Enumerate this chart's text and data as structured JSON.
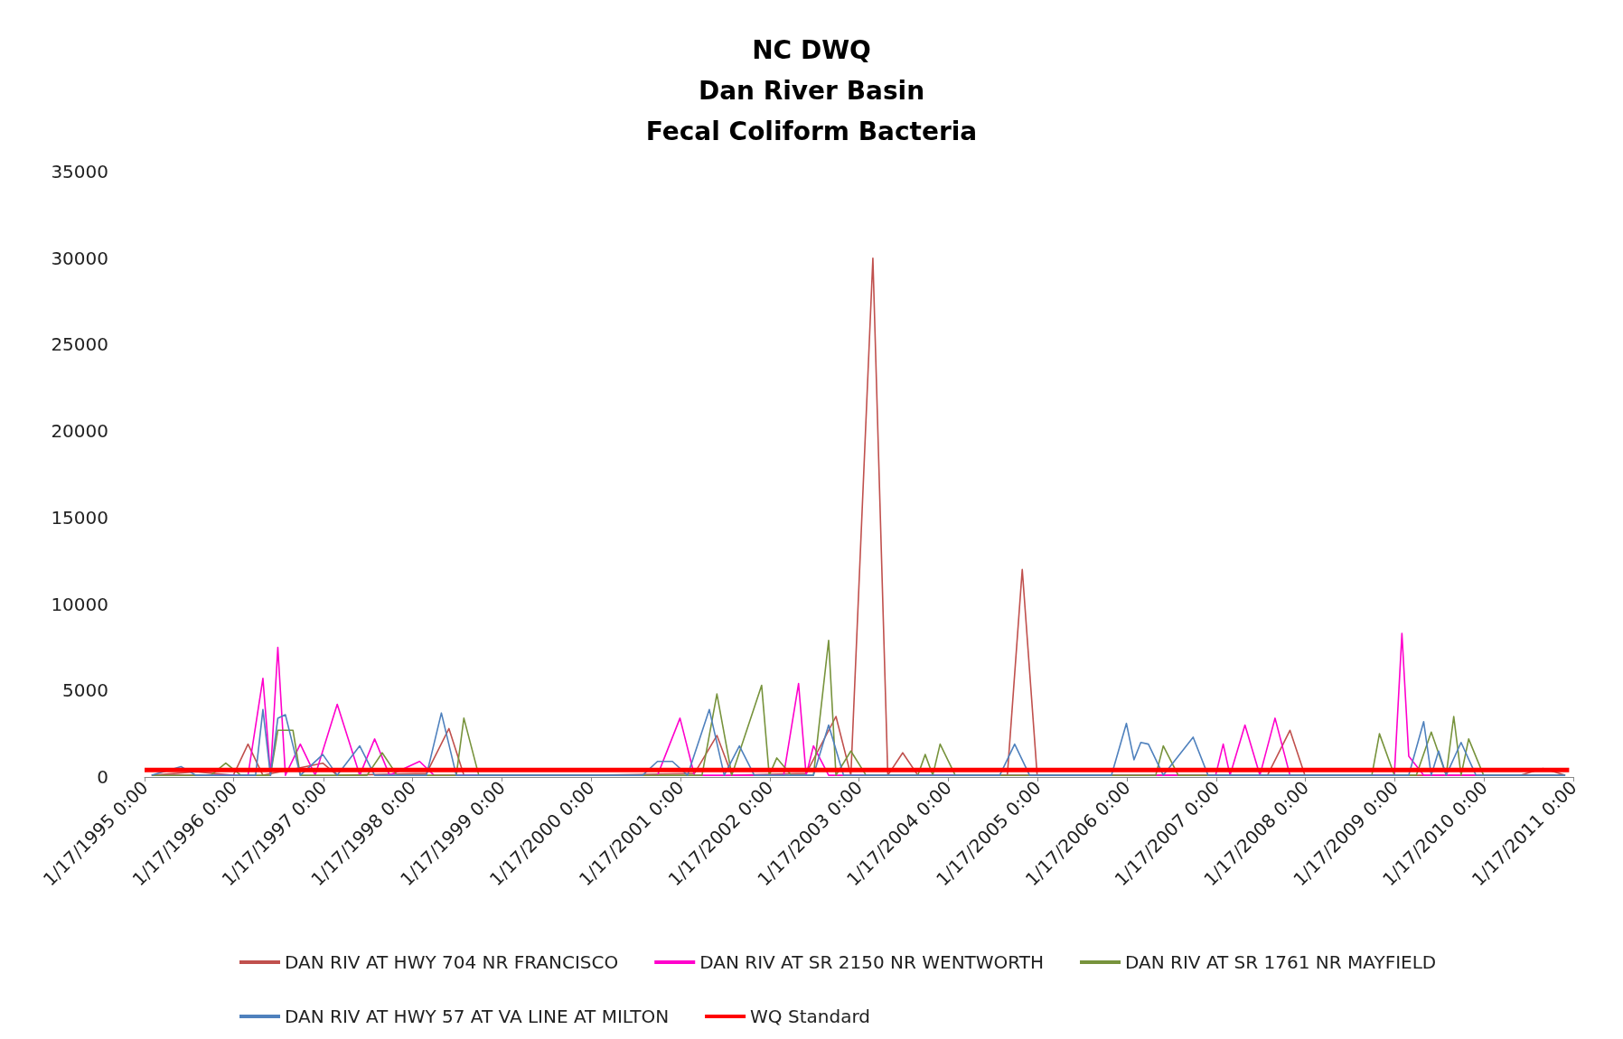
{
  "chart_data": {
    "type": "line",
    "title": "NC DWQ\nDan River Basin\nFecal Coliform Bacteria",
    "xlim": [
      "1995-01-17",
      "2011-01-17"
    ],
    "xticks": [
      {
        "value": "1995-01-17",
        "label": "1/17/1995 0:00"
      },
      {
        "value": "1996-01-17",
        "label": "1/17/1996 0:00"
      },
      {
        "value": "1997-01-17",
        "label": "1/17/1997 0:00"
      },
      {
        "value": "1998-01-17",
        "label": "1/17/1998 0:00"
      },
      {
        "value": "1999-01-17",
        "label": "1/17/1999 0:00"
      },
      {
        "value": "2000-01-17",
        "label": "1/17/2000 0:00"
      },
      {
        "value": "2001-01-17",
        "label": "1/17/2001 0:00"
      },
      {
        "value": "2002-01-17",
        "label": "1/17/2002 0:00"
      },
      {
        "value": "2003-01-17",
        "label": "1/17/2003 0:00"
      },
      {
        "value": "2004-01-17",
        "label": "1/17/2004 0:00"
      },
      {
        "value": "2005-01-17",
        "label": "1/17/2005 0:00"
      },
      {
        "value": "2006-01-17",
        "label": "1/17/2006 0:00"
      },
      {
        "value": "2007-01-17",
        "label": "1/17/2007 0:00"
      },
      {
        "value": "2008-01-17",
        "label": "1/17/2008 0:00"
      },
      {
        "value": "2009-01-17",
        "label": "1/17/2009 0:00"
      },
      {
        "value": "2010-01-17",
        "label": "1/17/2010 0:00"
      },
      {
        "value": "2011-01-17",
        "label": "1/17/2011 0:00"
      }
    ],
    "ylim": [
      0,
      35000
    ],
    "yticks": [
      0,
      5000,
      10000,
      15000,
      20000,
      25000,
      30000,
      35000
    ],
    "grid": false,
    "legend": "bottom",
    "marker": "none",
    "line_style": "solid",
    "series": [
      {
        "name": "DAN RIV AT HWY 704 NR FRANCISCO",
        "color": "#c0504d",
        "x": [
          "1995-02",
          "1995-08",
          "1996-01",
          "1996-03",
          "1996-05",
          "1997-01",
          "1997-03",
          "1998-03",
          "1998-06",
          "1998-08",
          "2000-01",
          "2001-03",
          "2001-06",
          "2001-08",
          "2002-06",
          "2002-10",
          "2002-12",
          "2003-03",
          "2003-05",
          "2003-07",
          "2003-09",
          "2004-09",
          "2004-11",
          "2005-01",
          "2007-08",
          "2007-11",
          "2008-01",
          "2010-06",
          "2010-09",
          "2010-12"
        ],
        "values": [
          100,
          300,
          100,
          1900,
          100,
          800,
          100,
          200,
          2800,
          100,
          100,
          200,
          2400,
          100,
          200,
          3500,
          100,
          30000,
          100,
          1400,
          100,
          100,
          12000,
          100,
          100,
          2700,
          100,
          100,
          500,
          100
        ]
      },
      {
        "name": "DAN RIV AT SR 2150 NR WENTWORTH",
        "color": "#ff00cc",
        "x": [
          "1995-02",
          "1996-03",
          "1996-05",
          "1996-06",
          "1996-07",
          "1996-08",
          "1996-10",
          "1996-12",
          "1997-03",
          "1997-06",
          "1997-08",
          "1997-10",
          "1998-02",
          "1998-04",
          "2000-10",
          "2001-01",
          "2001-03",
          "2002-03",
          "2002-05",
          "2002-06",
          "2002-07",
          "2002-09",
          "2007-01",
          "2007-02",
          "2007-03",
          "2007-05",
          "2007-07",
          "2007-09",
          "2007-11",
          "2009-01",
          "2009-02",
          "2009-03",
          "2009-05",
          "2010-12"
        ],
        "values": [
          100,
          100,
          5700,
          100,
          7500,
          100,
          1900,
          100,
          4200,
          100,
          2200,
          100,
          900,
          100,
          100,
          3400,
          100,
          100,
          5400,
          100,
          1800,
          100,
          100,
          1900,
          100,
          3000,
          100,
          3400,
          100,
          100,
          8300,
          1200,
          100,
          100
        ]
      },
      {
        "name": "DAN RIV AT SR 1761 NR MAYFIELD",
        "color": "#77933c",
        "x": [
          "1995-02",
          "1995-10",
          "1995-12",
          "1996-02",
          "1996-06",
          "1996-07",
          "1996-09",
          "1996-10",
          "1997-07",
          "1997-09",
          "1997-11",
          "1998-07",
          "1998-08",
          "1998-10",
          "2001-04",
          "2001-06",
          "2001-08",
          "2001-12",
          "2002-01",
          "2002-02",
          "2002-04",
          "2002-07",
          "2002-09",
          "2002-10",
          "2002-12",
          "2003-02",
          "2003-09",
          "2003-10",
          "2003-11",
          "2003-12",
          "2004-02",
          "2006-05",
          "2006-06",
          "2006-08",
          "2008-10",
          "2008-11",
          "2009-01",
          "2009-04",
          "2009-06",
          "2009-08",
          "2009-09",
          "2009-10",
          "2009-11",
          "2010-01",
          "2010-12"
        ],
        "values": [
          100,
          100,
          800,
          100,
          100,
          2700,
          2700,
          100,
          100,
          1400,
          100,
          100,
          3400,
          100,
          100,
          4800,
          100,
          5300,
          100,
          1100,
          100,
          100,
          7900,
          100,
          1500,
          100,
          100,
          1300,
          100,
          1900,
          100,
          100,
          1800,
          100,
          100,
          2500,
          100,
          100,
          2600,
          100,
          3500,
          100,
          2200,
          100,
          100
        ]
      },
      {
        "name": "DAN RIV AT HWY 57 AT VA LINE AT MILTON",
        "color": "#4f81bd",
        "x": [
          "1995-02",
          "1995-06",
          "1995-08",
          "1996-04",
          "1996-05",
          "1996-06",
          "1996-07",
          "1996-08",
          "1996-10",
          "1997-01",
          "1997-03",
          "1997-06",
          "1997-08",
          "1998-03",
          "1998-05",
          "1998-07",
          "2000-08",
          "2000-10",
          "2000-12",
          "2001-02",
          "2001-05",
          "2001-07",
          "2001-09",
          "2001-11",
          "2002-07",
          "2002-09",
          "2002-11",
          "2004-08",
          "2004-10",
          "2004-12",
          "2005-11",
          "2006-01",
          "2006-02",
          "2006-03",
          "2006-04",
          "2006-06",
          "2006-10",
          "2006-12",
          "2009-03",
          "2009-05",
          "2009-06",
          "2009-07",
          "2009-08",
          "2009-10",
          "2009-12",
          "2010-12"
        ],
        "values": [
          100,
          600,
          100,
          100,
          3900,
          100,
          3400,
          3600,
          100,
          1300,
          100,
          1800,
          100,
          100,
          3700,
          100,
          100,
          900,
          900,
          100,
          3900,
          100,
          1800,
          100,
          100,
          3000,
          100,
          100,
          1900,
          100,
          100,
          3100,
          1000,
          2000,
          1900,
          100,
          2300,
          100,
          100,
          3200,
          100,
          1500,
          100,
          2000,
          100,
          100
        ]
      },
      {
        "name": "WQ Standard",
        "color": "#ff0000",
        "x": [
          "1995-01-17",
          "2010-12-31"
        ],
        "values": [
          400,
          400
        ]
      }
    ]
  }
}
